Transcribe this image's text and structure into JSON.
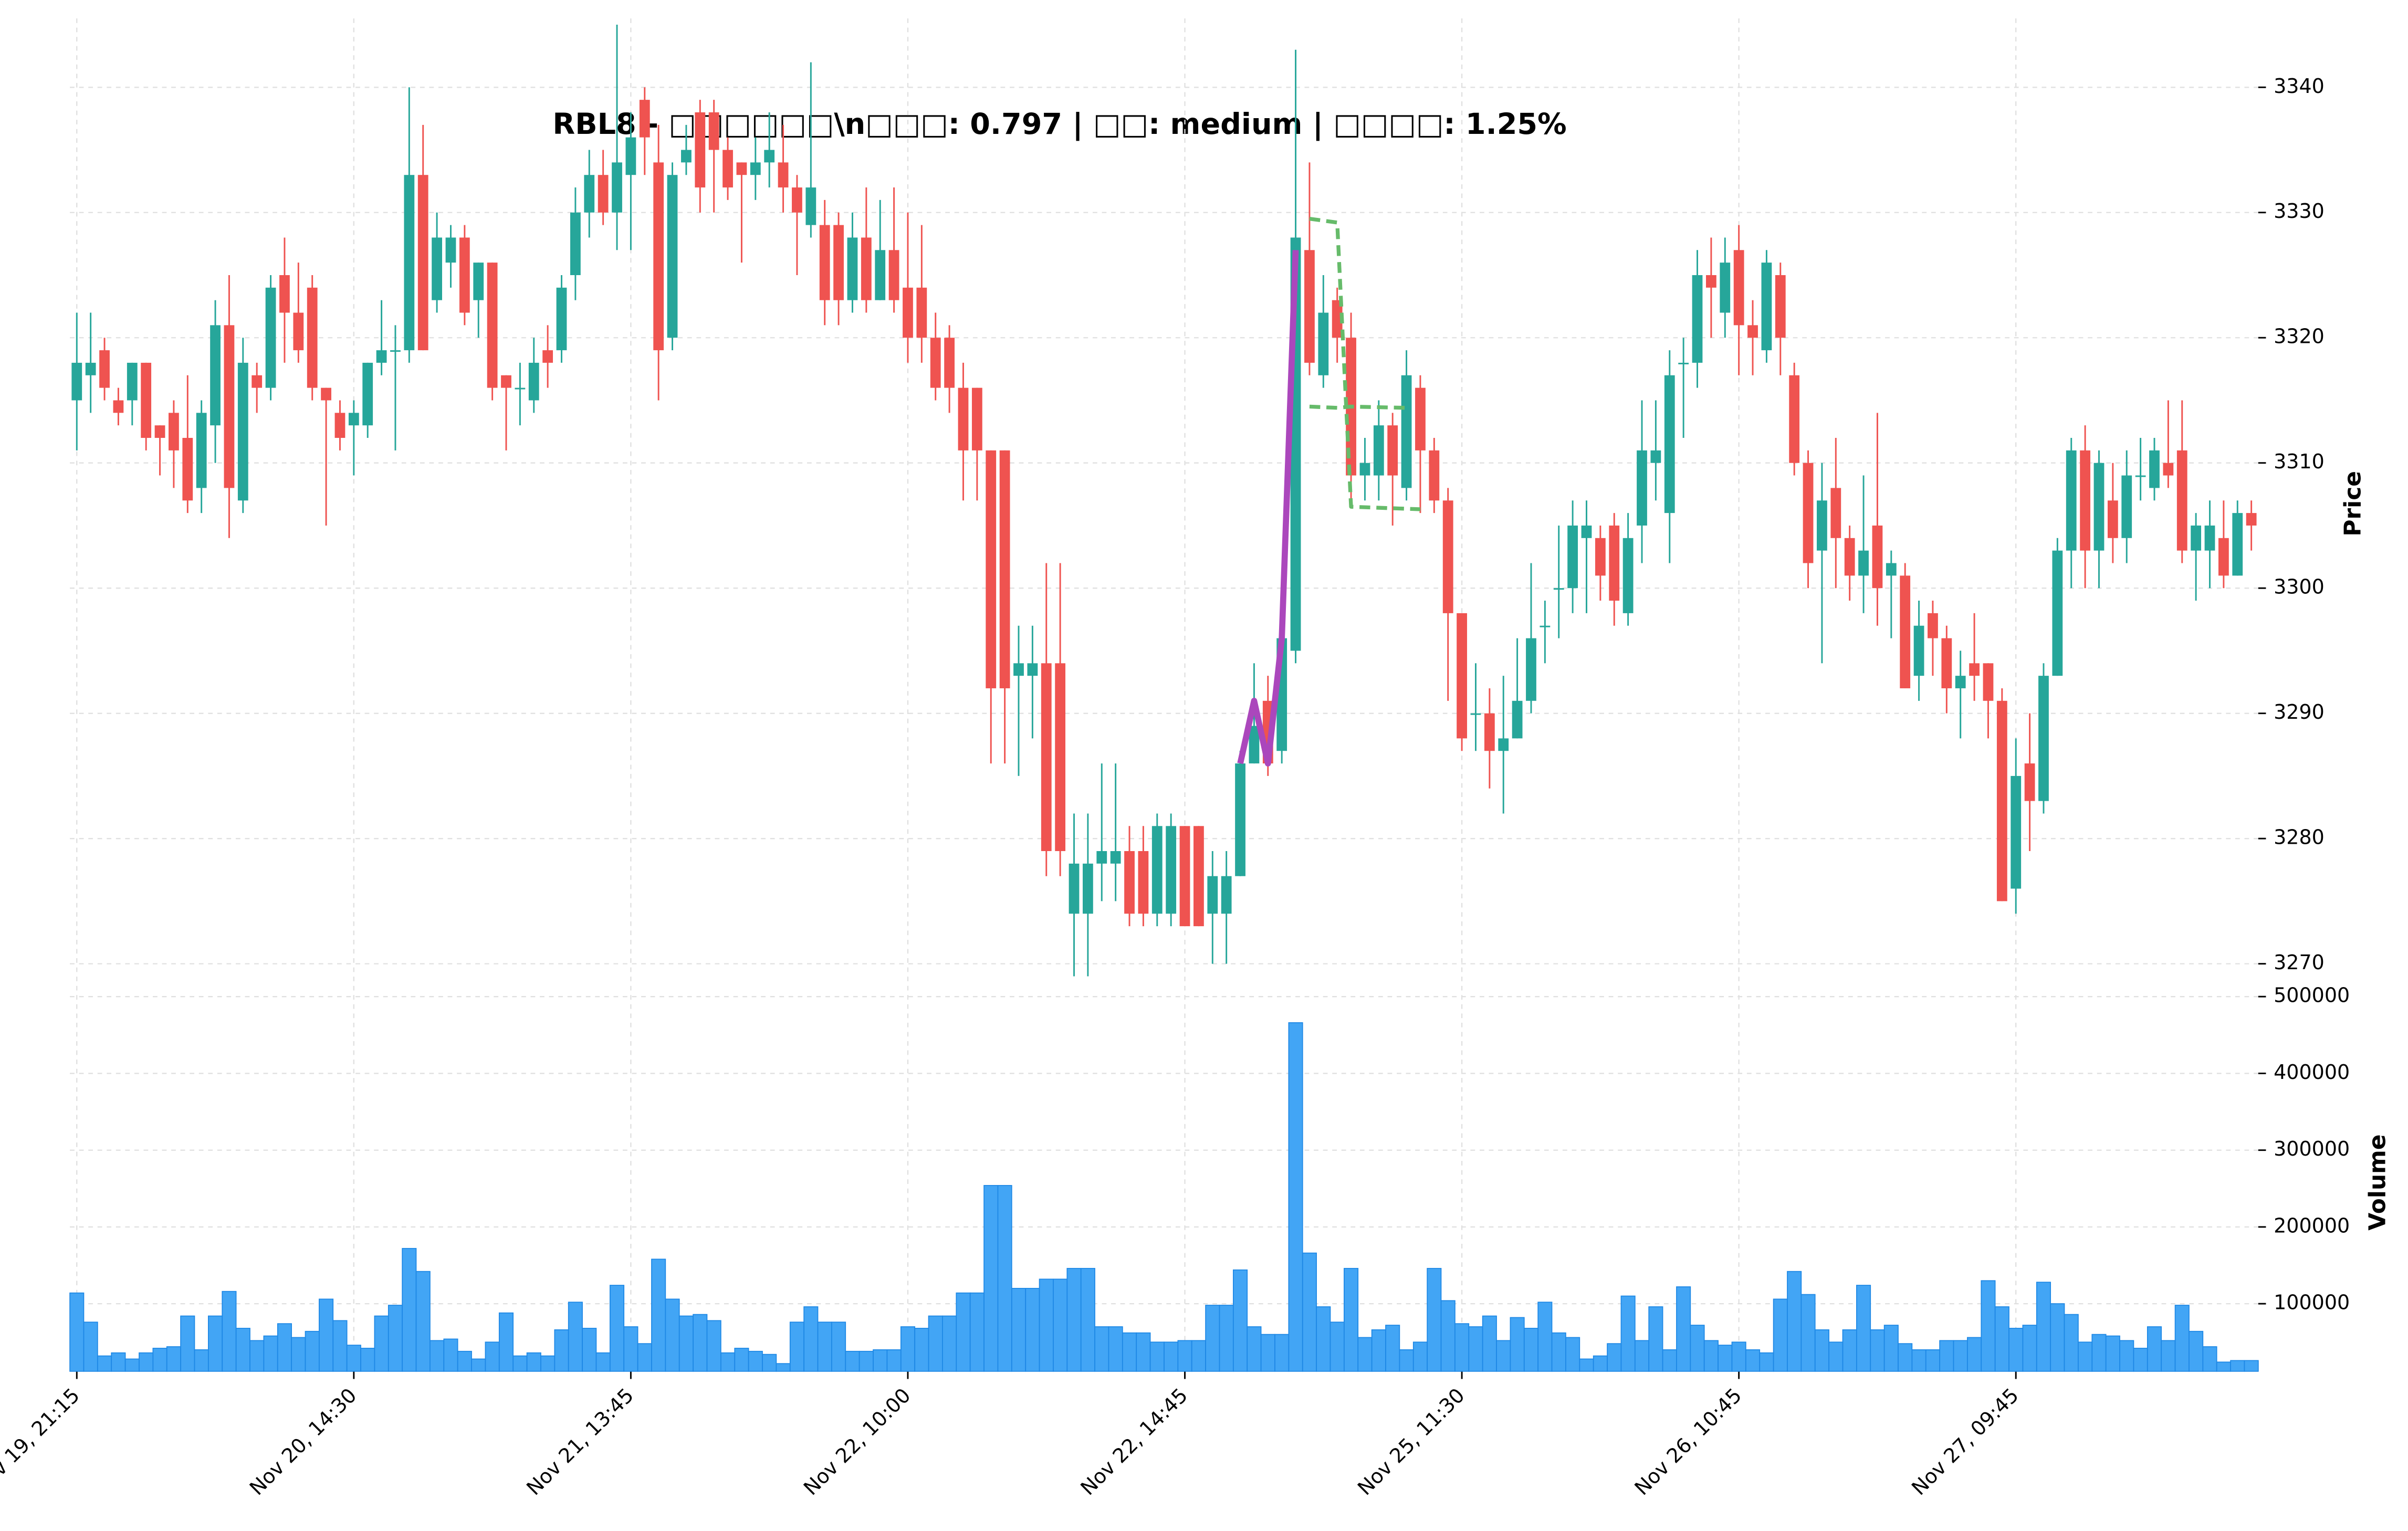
{
  "chart_data": {
    "type": "candlestick",
    "title": "RBL8 - □□□□□□\\n□□□: 0.797 | □□: medium | □□□□: 1.25%",
    "ylabel": "Price",
    "up_color": "#26a69a",
    "down_color": "#ef5350",
    "grid": true,
    "xlim": [
      -0.5,
      157.5
    ],
    "xticks": [
      {
        "value": 0,
        "label": "Nov 19, 21:15"
      },
      {
        "value": 20,
        "label": "Nov 20, 14:30"
      },
      {
        "value": 40,
        "label": "Nov 21, 13:45"
      },
      {
        "value": 60,
        "label": "Nov 22, 10:00"
      },
      {
        "value": 80,
        "label": "Nov 22, 14:45"
      },
      {
        "value": 100,
        "label": "Nov 25, 11:30"
      },
      {
        "value": 120,
        "label": "Nov 26, 10:45"
      },
      {
        "value": 140,
        "label": "Nov 27, 09:45"
      }
    ],
    "ylim": [
      3267.5,
      3345.5
    ],
    "yticks": [
      3270,
      3280,
      3290,
      3300,
      3310,
      3320,
      3330,
      3340
    ],
    "open": [
      3315,
      3317,
      3319,
      3315,
      3315,
      3318,
      3313,
      3314,
      3312,
      3308,
      3313,
      3321,
      3307,
      3317,
      3316,
      3325,
      3322,
      3324,
      3316,
      3314,
      3313,
      3313,
      3318,
      3319,
      3319,
      3333,
      3323,
      3326,
      3328,
      3323,
      3326,
      3317,
      3316,
      3315,
      3319,
      3319,
      3325,
      3330,
      3333,
      3330,
      3333,
      3339,
      3334,
      3320,
      3334,
      3338,
      3338,
      3335,
      3334,
      3333,
      3334,
      3334,
      3332,
      3329,
      3329,
      3329,
      3323,
      3328,
      3323,
      3327,
      3324,
      3324,
      3320,
      3320,
      3316,
      3316,
      3311,
      3311,
      3293,
      3293,
      3294,
      3294,
      3274,
      3274,
      3278,
      3278,
      3279,
      3279,
      3274,
      3274,
      3281,
      3281,
      3274,
      3274,
      3277,
      3286,
      3291,
      3287,
      3295,
      3327,
      3317,
      3323,
      3320,
      3309,
      3309,
      3313,
      3308,
      3316,
      3311,
      3307,
      3298,
      3290,
      3290,
      3287,
      3288,
      3291,
      3297,
      3300,
      3300,
      3304,
      3304,
      3305,
      3298,
      3305,
      3310,
      3306,
      3318,
      3318,
      3325,
      3322,
      3327,
      3321,
      3319,
      3325,
      3317,
      3310,
      3303,
      3308,
      3304,
      3301,
      3305,
      3301,
      3301,
      3293,
      3298,
      3296,
      3292,
      3294,
      3294,
      3291,
      3276,
      3286,
      3283,
      3293,
      3303,
      3311,
      3303,
      3307,
      3304,
      3309,
      3308,
      3310,
      3311,
      3303,
      3303,
      3304,
      3301,
      3306
    ],
    "high": [
      3322,
      3322,
      3320,
      3316,
      3318,
      3318,
      3313,
      3315,
      3317,
      3315,
      3323,
      3325,
      3320,
      3318,
      3325,
      3328,
      3326,
      3325,
      3316,
      3315,
      3315,
      3318,
      3323,
      3321,
      3340,
      3337,
      3330,
      3329,
      3329,
      3326,
      3326,
      3317,
      3318,
      3320,
      3321,
      3325,
      3332,
      3335,
      3335,
      3345,
      3338,
      3340,
      3337,
      3334,
      3337,
      3339,
      3339,
      3336,
      3334,
      3336,
      3338,
      3337,
      3333,
      3342,
      3331,
      3330,
      3330,
      3332,
      3331,
      3332,
      3330,
      3329,
      3322,
      3321,
      3318,
      3316,
      3311,
      3311,
      3297,
      3297,
      3302,
      3302,
      3282,
      3282,
      3286,
      3286,
      3281,
      3281,
      3282,
      3282,
      3281,
      3281,
      3279,
      3279,
      3287,
      3294,
      3293,
      3297,
      3343,
      3334,
      3325,
      3324,
      3322,
      3312,
      3315,
      3314,
      3319,
      3317,
      3312,
      3308,
      3298,
      3294,
      3292,
      3293,
      3296,
      3302,
      3299,
      3305,
      3307,
      3307,
      3305,
      3306,
      3306,
      3315,
      3315,
      3319,
      3320,
      3327,
      3328,
      3328,
      3329,
      3323,
      3327,
      3326,
      3318,
      3311,
      3310,
      3312,
      3305,
      3309,
      3314,
      3303,
      3302,
      3299,
      3299,
      3297,
      3295,
      3298,
      3294,
      3292,
      3288,
      3290,
      3294,
      3304,
      3312,
      3313,
      3311,
      3310,
      3311,
      3312,
      3312,
      3315,
      3315,
      3306,
      3307,
      3307,
      3307,
      3307
    ],
    "low": [
      3311,
      3314,
      3315,
      3313,
      3313,
      3311,
      3309,
      3308,
      3306,
      3306,
      3310,
      3304,
      3306,
      3314,
      3315,
      3318,
      3318,
      3315,
      3305,
      3311,
      3309,
      3312,
      3317,
      3311,
      3318,
      3319,
      3322,
      3324,
      3321,
      3320,
      3315,
      3311,
      3313,
      3314,
      3316,
      3318,
      3323,
      3328,
      3329,
      3327,
      3327,
      3333,
      3315,
      3319,
      3333,
      3330,
      3330,
      3331,
      3326,
      3331,
      3332,
      3330,
      3325,
      3328,
      3321,
      3321,
      3322,
      3322,
      3323,
      3322,
      3318,
      3318,
      3315,
      3314,
      3307,
      3307,
      3286,
      3286,
      3285,
      3288,
      3277,
      3277,
      3269,
      3269,
      3275,
      3275,
      3273,
      3273,
      3273,
      3273,
      3273,
      3273,
      3270,
      3270,
      3277,
      3286,
      3285,
      3286,
      3294,
      3317,
      3316,
      3318,
      3307,
      3307,
      3307,
      3305,
      3307,
      3306,
      3306,
      3291,
      3287,
      3287,
      3284,
      3282,
      3288,
      3290,
      3294,
      3296,
      3298,
      3298,
      3299,
      3297,
      3297,
      3302,
      3307,
      3302,
      3312,
      3316,
      3320,
      3320,
      3317,
      3317,
      3318,
      3317,
      3309,
      3300,
      3294,
      3300,
      3299,
      3298,
      3297,
      3296,
      3292,
      3291,
      3293,
      3290,
      3288,
      3291,
      3288,
      3275,
      3274,
      3279,
      3282,
      3293,
      3300,
      3300,
      3300,
      3302,
      3302,
      3307,
      3307,
      3308,
      3302,
      3299,
      3300,
      3300,
      3301,
      3303
    ],
    "close": [
      3318,
      3318,
      3316,
      3314,
      3318,
      3312,
      3312,
      3311,
      3307,
      3314,
      3321,
      3308,
      3318,
      3316,
      3324,
      3322,
      3319,
      3316,
      3315,
      3312,
      3314,
      3318,
      3319,
      3319,
      3333,
      3319,
      3328,
      3328,
      3322,
      3326,
      3316,
      3316,
      3316,
      3318,
      3318,
      3324,
      3330,
      3333,
      3330,
      3334,
      3336,
      3336,
      3319,
      3333,
      3335,
      3332,
      3335,
      3332,
      3333,
      3334,
      3335,
      3332,
      3330,
      3332,
      3323,
      3323,
      3328,
      3323,
      3327,
      3323,
      3320,
      3320,
      3316,
      3316,
      3311,
      3311,
      3292,
      3292,
      3294,
      3294,
      3279,
      3279,
      3278,
      3278,
      3279,
      3279,
      3274,
      3274,
      3281,
      3281,
      3273,
      3273,
      3277,
      3277,
      3286,
      3289,
      3286,
      3296,
      3328,
      3318,
      3322,
      3320,
      3309,
      3310,
      3313,
      3309,
      3317,
      3311,
      3307,
      3298,
      3288,
      3290,
      3287,
      3288,
      3291,
      3296,
      3297,
      3300,
      3305,
      3305,
      3301,
      3299,
      3304,
      3311,
      3311,
      3317,
      3318,
      3325,
      3324,
      3326,
      3321,
      3320,
      3326,
      3320,
      3310,
      3302,
      3307,
      3304,
      3301,
      3303,
      3300,
      3302,
      3292,
      3297,
      3296,
      3292,
      3293,
      3293,
      3291,
      3275,
      3285,
      3283,
      3293,
      3303,
      3311,
      3303,
      3310,
      3304,
      3309,
      3309,
      3311,
      3309,
      3303,
      3305,
      3305,
      3301,
      3306,
      3305
    ],
    "volume": {
      "ylabel": "Volume",
      "color": "#42a5f5",
      "edge": "#1e88e5",
      "ylim": [
        12000,
        502000
      ],
      "yticks": [
        100000,
        200000,
        300000,
        400000,
        500000
      ],
      "values": [
        114000,
        76000,
        32000,
        36000,
        28000,
        36000,
        42000,
        44000,
        84000,
        40000,
        84000,
        116000,
        68000,
        52000,
        58000,
        74000,
        56000,
        64000,
        106000,
        78000,
        46000,
        42000,
        84000,
        98000,
        172000,
        142000,
        52000,
        54000,
        38000,
        28000,
        50000,
        88000,
        32000,
        36000,
        32000,
        66000,
        102000,
        68000,
        36000,
        124000,
        70000,
        48000,
        158000,
        106000,
        84000,
        86000,
        78000,
        36000,
        42000,
        38000,
        34000,
        22000,
        76000,
        96000,
        76000,
        76000,
        38000,
        38000,
        40000,
        40000,
        70000,
        68000,
        84000,
        84000,
        114000,
        114000,
        254000,
        254000,
        120000,
        120000,
        132000,
        132000,
        146000,
        146000,
        70000,
        70000,
        62000,
        62000,
        50000,
        50000,
        52000,
        52000,
        98000,
        98000,
        144000,
        70000,
        60000,
        60000,
        466000,
        166000,
        96000,
        76000,
        146000,
        56000,
        66000,
        72000,
        40000,
        50000,
        146000,
        104000,
        74000,
        70000,
        84000,
        52000,
        82000,
        68000,
        102000,
        62000,
        56000,
        28000,
        32000,
        48000,
        110000,
        52000,
        96000,
        40000,
        122000,
        72000,
        52000,
        46000,
        50000,
        40000,
        36000,
        106000,
        142000,
        112000,
        66000,
        50000,
        66000,
        124000,
        66000,
        72000,
        48000,
        40000,
        40000,
        52000,
        52000,
        56000,
        130000,
        96000,
        68000,
        72000,
        128000,
        100000,
        86000,
        50000,
        60000,
        58000,
        52000,
        42000,
        70000,
        52000,
        98000,
        64000,
        44000,
        24000,
        26000,
        26000
      ]
    },
    "lines": [
      {
        "color": "#ab47bc",
        "style": "solid",
        "x": [
          84,
          85,
          86,
          87,
          88
        ],
        "y": [
          3286,
          3291,
          3286,
          3296,
          3327
        ]
      },
      {
        "color": "#66bb6a",
        "style": "dashed",
        "x": [
          89,
          91,
          92,
          97
        ],
        "y": [
          3329.5,
          3329.2,
          3306.5,
          3306.3
        ]
      },
      {
        "color": "#66bb6a",
        "style": "dashed",
        "x": [
          89,
          91,
          92,
          96
        ],
        "y": [
          3314.5,
          3314.4,
          3314.5,
          3314.4
        ]
      }
    ]
  }
}
